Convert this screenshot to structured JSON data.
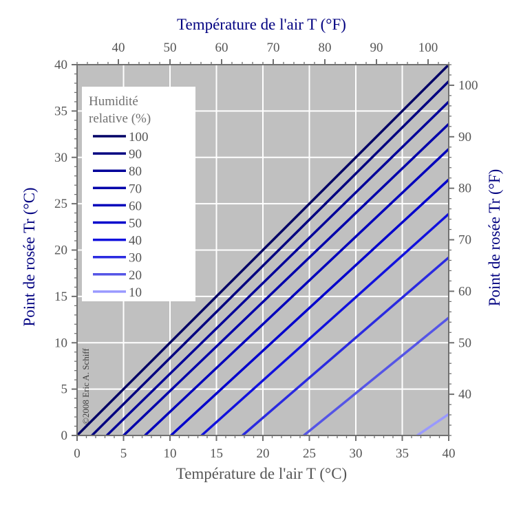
{
  "chart_data": {
    "type": "line",
    "xlabel_bottom": "Température de l'air  T (°C)",
    "xlabel_top": "Température de l'air  T (°F)",
    "ylabel_left": "Point de rosée  Tr (°C)",
    "ylabel_right": "Point de rosée  Tr (°F)",
    "xlim": [
      0,
      40
    ],
    "ylim": [
      0,
      40
    ],
    "grid": true,
    "x_ticks": [
      "0",
      "5",
      "10",
      "15",
      "20",
      "25",
      "30",
      "35",
      "40"
    ],
    "y_ticks": [
      "0",
      "5",
      "10",
      "15",
      "20",
      "25",
      "30",
      "35",
      "40"
    ],
    "top_ticks_f": [
      "40",
      "50",
      "60",
      "70",
      "80",
      "90",
      "100"
    ],
    "right_ticks_f": [
      "40",
      "50",
      "60",
      "70",
      "80",
      "90",
      "100"
    ],
    "legend": {
      "title_line1": "Humidité",
      "title_line2": "relative (%)",
      "placement": "top-left"
    },
    "copyright": "©2008 Eric A. Schiff",
    "series": [
      {
        "name": "100",
        "color": "#000066",
        "x": [
          0,
          40
        ],
        "y": [
          0.0,
          40.0
        ]
      },
      {
        "name": "90",
        "color": "#000080",
        "x": [
          1.6,
          40
        ],
        "y": [
          0.0,
          38.2
        ]
      },
      {
        "name": "80",
        "color": "#000099",
        "x": [
          3.2,
          40
        ],
        "y": [
          0.0,
          36.0
        ]
      },
      {
        "name": "70",
        "color": "#0000aa",
        "x": [
          5.0,
          40
        ],
        "y": [
          0.0,
          33.6
        ]
      },
      {
        "name": "60",
        "color": "#0000bb",
        "x": [
          7.3,
          40
        ],
        "y": [
          0.0,
          30.9
        ]
      },
      {
        "name": "50",
        "color": "#0000cc",
        "x": [
          10.1,
          40
        ],
        "y": [
          0.0,
          27.6
        ]
      },
      {
        "name": "40",
        "color": "#1111dd",
        "x": [
          13.4,
          40
        ],
        "y": [
          0.0,
          23.9
        ]
      },
      {
        "name": "30",
        "color": "#2a2ae0",
        "x": [
          17.8,
          40
        ],
        "y": [
          0.0,
          19.2
        ]
      },
      {
        "name": "20",
        "color": "#5555e6",
        "x": [
          24.4,
          40
        ],
        "y": [
          0.0,
          12.7
        ]
      },
      {
        "name": "10",
        "color": "#9999ff",
        "x": [
          36.6,
          40
        ],
        "y": [
          0.0,
          2.3
        ]
      }
    ]
  }
}
